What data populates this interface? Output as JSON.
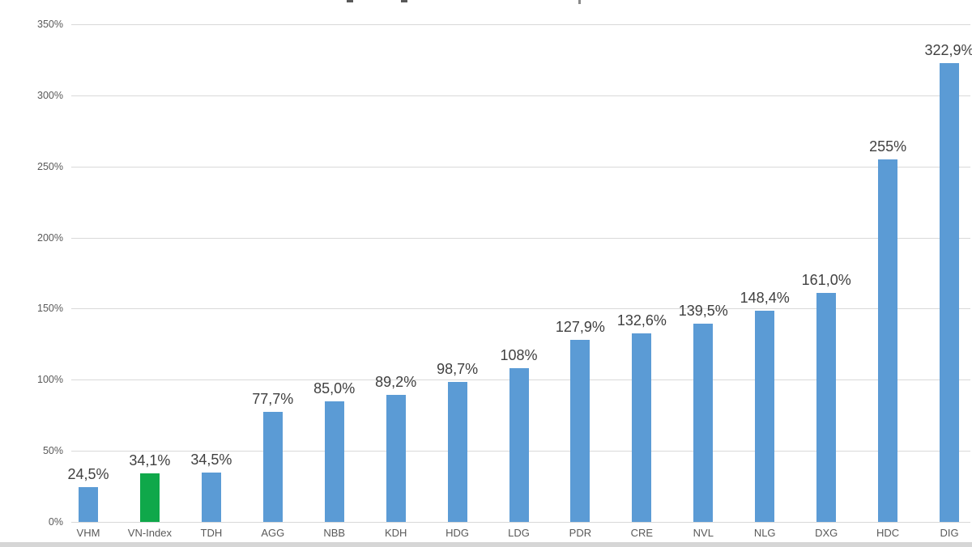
{
  "chart_data": {
    "type": "bar",
    "title": "",
    "title_note": "title cropped out of frame at top edge",
    "categories": [
      "VHM",
      "VN-Index",
      "TDH",
      "AGG",
      "NBB",
      "KDH",
      "HDG",
      "LDG",
      "PDR",
      "CRE",
      "NVL",
      "NLG",
      "DXG",
      "HDC",
      "DIG"
    ],
    "values": [
      24.5,
      34.1,
      34.5,
      77.7,
      85.0,
      89.2,
      98.7,
      108,
      127.9,
      132.6,
      139.5,
      148.4,
      161.0,
      255,
      322.9
    ],
    "value_labels": [
      "24,5%",
      "34,1%",
      "34,5%",
      "77,7%",
      "85,0%",
      "89,2%",
      "98,7%",
      "108%",
      "127,9%",
      "132,6%",
      "139,5%",
      "148,4%",
      "161,0%",
      "255%",
      "322,9%"
    ],
    "highlight_category": "VN-Index",
    "xlabel": "",
    "ylabel": "",
    "ylim": [
      0,
      350
    ],
    "ytick_step": 50,
    "ytick_labels": [
      "0%",
      "50%",
      "100%",
      "150%",
      "200%",
      "250%",
      "300%",
      "350%"
    ],
    "grid": "horizontal",
    "legend": "none",
    "colors": {
      "bar_default": "#5b9bd5",
      "bar_highlight": "#0fa84a",
      "gridline": "#d9d9d9",
      "tick_text": "#595959",
      "value_text": "#404040",
      "bottom_strip": "#d6d6d6"
    }
  }
}
